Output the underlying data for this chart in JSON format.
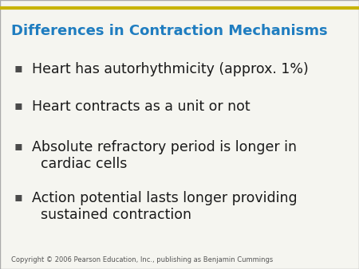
{
  "title": "Differences in Contraction Mechanisms",
  "title_color": "#1F7DC0",
  "title_fontsize": 13,
  "background_color": "#F5F5F0",
  "top_line_color": "#C8B400",
  "bullet_color": "#4a4a4a",
  "bullet_char": "▪",
  "bullets": [
    "Heart has autorhythmicity (approx. 1%)",
    "Heart contracts as a unit or not",
    "Absolute refractory period is longer in\n  cardiac cells",
    "Action potential lasts longer providing\n  sustained contraction"
  ],
  "bullet_fontsize": 12.5,
  "copyright": "Copyright © 2006 Pearson Education, Inc., publishing as Benjamin Cummings",
  "copyright_fontsize": 6,
  "copyright_color": "#555555"
}
